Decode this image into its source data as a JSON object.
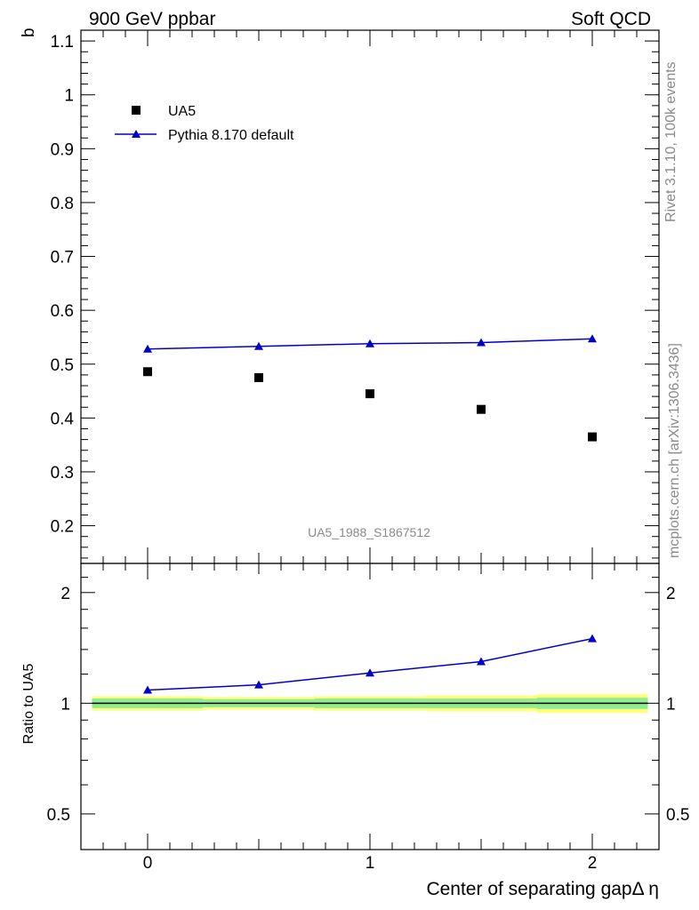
{
  "header": {
    "left": "900 GeV ppbar",
    "right": "Soft QCD"
  },
  "side_text": {
    "rivet": "Rivet 3.1.10,  100k events",
    "mcplots": "mcplots.cern.ch [arXiv:1306.3436]"
  },
  "watermark": "UA5_1988_S1867512",
  "colors": {
    "data": "#000000",
    "mc": "#0000cc",
    "band_outer": "#ffff80",
    "band_inner": "#90ee90"
  },
  "chart_data": [
    {
      "type": "scatter",
      "panel": "main",
      "ylabel": "b",
      "xlim": [
        -0.3,
        2.3
      ],
      "ylim": [
        0.13,
        1.12
      ],
      "yticks": [
        0.2,
        0.3,
        0.4,
        0.5,
        0.6,
        0.7,
        0.8,
        0.9,
        1,
        1.1
      ],
      "ytick_labels": [
        "0.2",
        "0.3",
        "0.4",
        "0.5",
        "0.6",
        "0.7",
        "0.8",
        "0.9",
        "1",
        "1.1"
      ],
      "legend": {
        "placement": "top-left",
        "entries": [
          "UA5",
          "Pythia 8.170 default"
        ]
      },
      "series": [
        {
          "name": "UA5",
          "style": "markers-square",
          "x": [
            0,
            0.5,
            1,
            1.5,
            2
          ],
          "values": [
            0.486,
            0.475,
            0.445,
            0.416,
            0.365
          ]
        },
        {
          "name": "Pythia 8.170 default",
          "style": "line-triangle",
          "x": [
            0,
            0.5,
            1,
            1.5,
            2
          ],
          "values": [
            0.528,
            0.533,
            0.538,
            0.54,
            0.547
          ]
        }
      ]
    },
    {
      "type": "line",
      "panel": "ratio",
      "ylabel": "Ratio to UA5",
      "xlabel": "Center of separating gapΔ η",
      "xlim": [
        -0.3,
        2.3
      ],
      "ylim": [
        0.4,
        2.4
      ],
      "scale": "log",
      "xticks": [
        0,
        1,
        2
      ],
      "xtick_labels": [
        "0",
        "1",
        "2"
      ],
      "yticks": [
        0.5,
        1,
        2
      ],
      "ytick_labels": [
        "0.5",
        "1",
        "2"
      ],
      "band": {
        "x_edges": [
          -0.25,
          0.25,
          0.75,
          1.25,
          1.75,
          2.25
        ],
        "outer_half": [
          0.045,
          0.04,
          0.045,
          0.05,
          0.06
        ],
        "inner_half": [
          0.03,
          0.025,
          0.03,
          0.03,
          0.035
        ]
      },
      "series": [
        {
          "name": "Pythia 8.170 default / UA5",
          "x": [
            0,
            0.5,
            1,
            1.5,
            2
          ],
          "values": [
            1.086,
            1.122,
            1.209,
            1.298,
            1.499
          ]
        }
      ]
    }
  ]
}
